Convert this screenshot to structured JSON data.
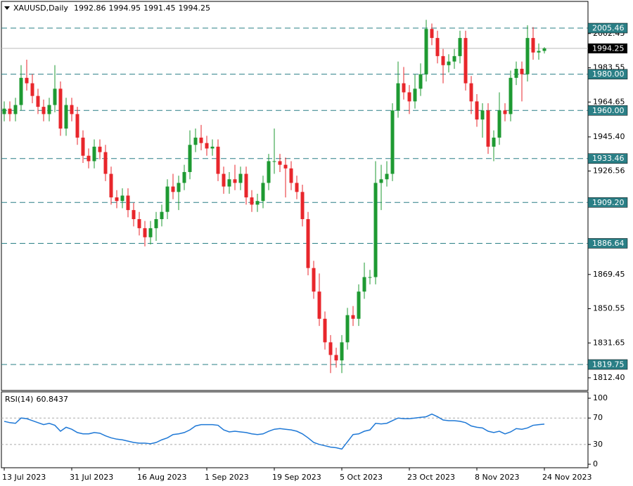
{
  "chart_data": [
    {
      "type": "candlestick",
      "title": "XAUUSD,Daily",
      "categories": [
        "13 Jul 2023",
        null,
        null,
        null,
        null,
        null,
        null,
        null,
        null,
        null,
        null,
        null,
        "31 Jul 2023",
        null,
        null,
        null,
        null,
        null,
        null,
        null,
        null,
        null,
        null,
        null,
        "16 Aug 2023",
        null,
        null,
        null,
        null,
        null,
        null,
        null,
        null,
        null,
        null,
        null,
        "1 Sep 2023",
        null,
        null,
        null,
        null,
        null,
        null,
        null,
        null,
        null,
        null,
        null,
        "19 Sep 2023",
        null,
        null,
        null,
        null,
        null,
        null,
        null,
        null,
        null,
        null,
        null,
        "5 Oct 2023",
        null,
        null,
        null,
        null,
        null,
        null,
        null,
        null,
        null,
        null,
        null,
        "23 Oct 2023",
        null,
        null,
        null,
        null,
        null,
        null,
        null,
        null,
        null,
        null,
        null,
        "8 Nov 2023",
        null,
        null,
        null,
        null,
        null,
        null,
        null,
        null,
        null,
        null,
        null,
        "24 Nov 2023"
      ],
      "open": [
        1958,
        1961,
        1958,
        1963,
        1978,
        1975,
        1968,
        1962,
        1958,
        1963,
        1972,
        1950,
        1963,
        1958,
        1945,
        1935,
        1932,
        1940,
        1937,
        1925,
        1912,
        1910,
        1913,
        1905,
        1900,
        1895,
        1890,
        1895,
        1900,
        1904,
        1918,
        1915,
        1920,
        1926,
        1941,
        1945,
        1942,
        1939,
        1940,
        1925,
        1918,
        1922,
        1920,
        1925,
        1912,
        1908,
        1910,
        1920,
        1932,
        1932,
        1930,
        1928,
        1920,
        1915,
        1900,
        1873,
        1860,
        1845,
        1832,
        1825,
        1822,
        1832,
        1847,
        1845,
        1860,
        1868,
        1868,
        1920,
        1922,
        1925,
        1960,
        1975,
        1970,
        1965,
        1972,
        1980,
        2005,
        2000,
        1990,
        1985,
        1987,
        1990,
        2000,
        1975,
        1965,
        1955,
        1960,
        1940,
        1945,
        1960,
        1958,
        1978,
        1983,
        1980,
        2000,
        1992,
        1992.86
      ],
      "high": [
        1965,
        1965,
        1967,
        1985,
        1988,
        1980,
        1972,
        1966,
        1967,
        1985,
        1976,
        1967,
        1967,
        1962,
        1949,
        1939,
        1944,
        1944,
        1941,
        1929,
        1916,
        1917,
        1917,
        1909,
        1904,
        1899,
        1899,
        1904,
        1908,
        1922,
        1925,
        1924,
        1930,
        1949,
        1950,
        1952,
        1946,
        1944,
        1944,
        1929,
        1926,
        1930,
        1929,
        1929,
        1916,
        1914,
        1924,
        1936,
        1950,
        1936,
        1934,
        1932,
        1924,
        1919,
        1904,
        1877,
        1870,
        1849,
        1836,
        1829,
        1836,
        1851,
        1852,
        1864,
        1876,
        1872,
        1932,
        1930,
        1932,
        1964,
        1987,
        1984,
        1974,
        1980,
        1986,
        2010,
        2008,
        2004,
        1994,
        1991,
        1994,
        2004,
        2004,
        1979,
        1969,
        1964,
        1964,
        1949,
        1970,
        1964,
        1982,
        1987,
        1987,
        2007,
        2006,
        1997,
        1994.95
      ],
      "low": [
        1954,
        1954,
        1954,
        1960,
        1971,
        1964,
        1958,
        1954,
        1954,
        1959,
        1946,
        1946,
        1954,
        1941,
        1931,
        1928,
        1928,
        1933,
        1921,
        1908,
        1906,
        1906,
        1901,
        1896,
        1891,
        1885,
        1886,
        1888,
        1896,
        1900,
        1911,
        1905,
        1916,
        1922,
        1937,
        1938,
        1935,
        1935,
        1921,
        1914,
        1914,
        1916,
        1916,
        1908,
        1904,
        1904,
        1906,
        1916,
        1925,
        1926,
        1912,
        1916,
        1911,
        1896,
        1869,
        1856,
        1841,
        1828,
        1815,
        1818,
        1815,
        1828,
        1841,
        1841,
        1856,
        1864,
        1864,
        1905,
        1918,
        1921,
        1956,
        1966,
        1958,
        1961,
        1968,
        1976,
        1996,
        1986,
        1975,
        1981,
        1983,
        1986,
        1971,
        1958,
        1951,
        1945,
        1936,
        1932,
        1941,
        1954,
        1954,
        1974,
        1965,
        1976,
        1988,
        1988,
        1991.45
      ],
      "close": [
        1961,
        1958,
        1963,
        1978,
        1975,
        1968,
        1962,
        1958,
        1963,
        1972,
        1950,
        1963,
        1958,
        1945,
        1935,
        1932,
        1940,
        1937,
        1925,
        1912,
        1910,
        1913,
        1905,
        1900,
        1895,
        1890,
        1895,
        1900,
        1904,
        1918,
        1915,
        1920,
        1926,
        1941,
        1945,
        1942,
        1939,
        1940,
        1925,
        1918,
        1922,
        1920,
        1925,
        1912,
        1908,
        1910,
        1920,
        1932,
        1932,
        1930,
        1928,
        1920,
        1915,
        1900,
        1873,
        1860,
        1845,
        1832,
        1825,
        1822,
        1832,
        1847,
        1845,
        1860,
        1868,
        1868,
        1920,
        1922,
        1925,
        1960,
        1975,
        1970,
        1965,
        1972,
        1980,
        2005,
        2000,
        1990,
        1985,
        1987,
        1990,
        2000,
        1975,
        1965,
        1955,
        1960,
        1940,
        1945,
        1960,
        1958,
        1978,
        1983,
        1980,
        2000,
        1992,
        1992.86,
        1994.25
      ],
      "up_color": "#1e9a32",
      "down_color": "#e8262b",
      "level_color": "#2a7f86",
      "ylim": [
        1805.4,
        2020.2
      ],
      "yticks": [
        2002.45,
        1983.55,
        1964.65,
        {
          "value": 1945.4,
          "label": "1945.40"
        },
        1926.56,
        1869.45,
        1850.55,
        1831.65,
        {
          "value": 1812.4,
          "label": "1812.40"
        }
      ],
      "levels": [
        2005.46,
        {
          "value": 1980,
          "label": "1980.00"
        },
        {
          "value": 1960,
          "label": "1960.00"
        },
        1933.46,
        {
          "value": 1909.2,
          "label": "1909.20"
        },
        1886.64,
        1819.75
      ]
    },
    {
      "type": "line",
      "title": "RSI(14)",
      "color": "#1e78d6",
      "values": [
        65,
        63,
        62,
        70,
        69,
        66,
        63,
        60,
        62,
        59,
        50,
        56,
        53,
        48,
        46,
        46,
        48,
        47,
        43,
        40,
        38,
        37,
        35,
        33,
        32,
        32,
        31,
        33,
        37,
        40,
        45,
        46,
        48,
        52,
        58,
        60,
        60,
        60,
        59,
        52,
        49,
        50,
        49,
        48,
        46,
        45,
        46,
        50,
        53,
        54,
        53,
        52,
        50,
        46,
        40,
        33,
        30,
        28,
        26,
        25,
        23,
        34,
        45,
        46,
        50,
        52,
        62,
        61,
        62,
        66,
        70,
        69,
        69,
        70,
        71,
        72,
        76,
        72,
        67,
        66,
        66,
        65,
        63,
        58,
        56,
        55,
        50,
        48,
        50,
        46,
        49,
        54,
        53,
        55,
        59,
        60,
        60.8437
      ],
      "ylim": [
        -5.3,
        109.6
      ],
      "yticks": [
        0,
        30,
        70,
        100
      ],
      "levels": [
        30,
        70
      ]
    }
  ]
}
